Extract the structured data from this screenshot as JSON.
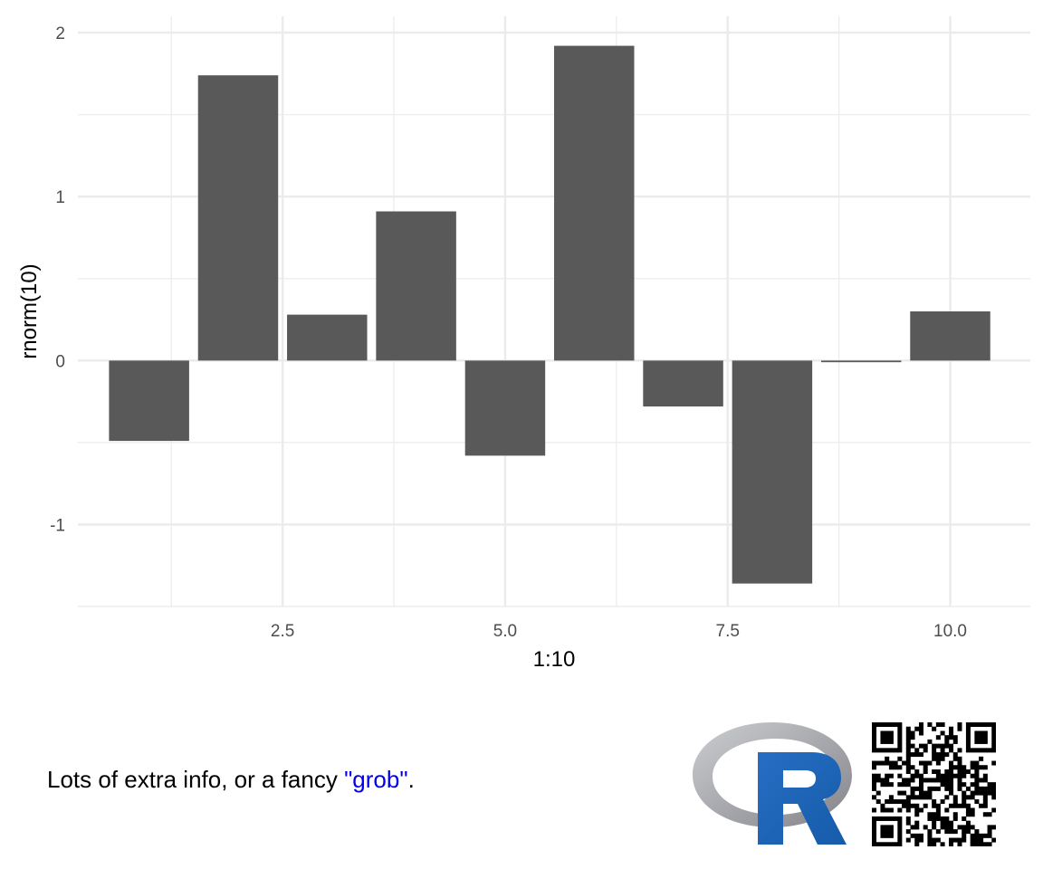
{
  "chart_data": {
    "type": "bar",
    "x": [
      1,
      2,
      3,
      4,
      5,
      6,
      7,
      8,
      9,
      10
    ],
    "values": [
      -0.49,
      1.74,
      0.28,
      0.91,
      -0.58,
      1.92,
      -0.28,
      -1.36,
      -0.01,
      0.3
    ],
    "xlabel": "1:10",
    "ylabel": "rnorm(10)",
    "xlim": [
      0.2,
      10.9
    ],
    "ylim": [
      -1.5,
      2.1
    ],
    "x_ticks": [
      {
        "value": 2.5,
        "label": "2.5"
      },
      {
        "value": 5.0,
        "label": "5.0"
      },
      {
        "value": 7.5,
        "label": "7.5"
      },
      {
        "value": 10.0,
        "label": "10.0"
      }
    ],
    "y_ticks": [
      {
        "value": -1,
        "label": "-1"
      },
      {
        "value": 0,
        "label": "0"
      },
      {
        "value": 1,
        "label": "1"
      },
      {
        "value": 2,
        "label": "2"
      }
    ],
    "grid": true,
    "bar_color": "#595959",
    "grid_color": "#ebebeb"
  },
  "annotation": {
    "text_before": "Lots of extra info, or a fancy ",
    "highlight": "\"grob\"",
    "text_after": ".",
    "highlight_color": "#0000ee"
  },
  "logo": {
    "text": "R",
    "icon": "r-logo-icon"
  },
  "qr": {
    "icon": "qr-code-icon"
  }
}
